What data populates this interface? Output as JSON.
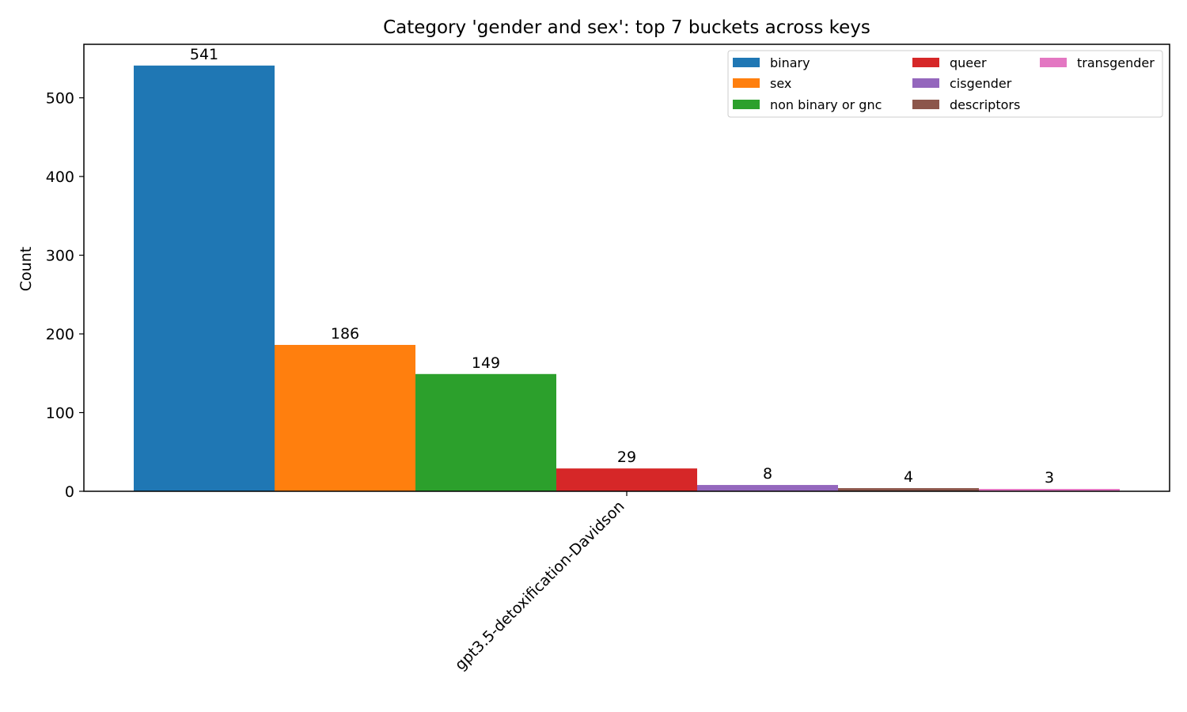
{
  "chart_data": {
    "type": "bar",
    "title": "Category 'gender and sex': top 7 buckets across keys",
    "xlabel": "",
    "ylabel": "Count",
    "categories": [
      "gpt3.5-detoxification-Davidson"
    ],
    "ylim": [
      0,
      568
    ],
    "yticks": [
      0,
      100,
      200,
      300,
      400,
      500
    ],
    "grid": false,
    "legend_position": "top-right",
    "series": [
      {
        "name": "binary",
        "values": [
          541
        ],
        "color": "#1f77b4"
      },
      {
        "name": "sex",
        "values": [
          186
        ],
        "color": "#ff7f0e"
      },
      {
        "name": "non binary or gnc",
        "values": [
          149
        ],
        "color": "#2ca02c"
      },
      {
        "name": "queer",
        "values": [
          29
        ],
        "color": "#d62728"
      },
      {
        "name": "cisgender",
        "values": [
          8
        ],
        "color": "#9467bd"
      },
      {
        "name": "descriptors",
        "values": [
          4
        ],
        "color": "#8c564b"
      },
      {
        "name": "transgender",
        "values": [
          3
        ],
        "color": "#e377c2"
      }
    ]
  }
}
